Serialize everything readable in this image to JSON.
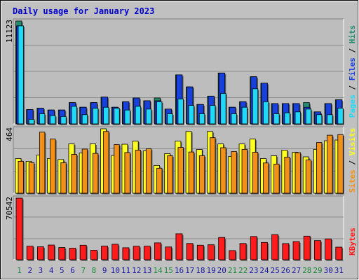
{
  "title": "Daily usage for January 2023",
  "colors": {
    "hits": "#228B72",
    "files": "#1840DD",
    "pages": "#22D8F8",
    "visits": "#FFFF22",
    "sites": "#F39018",
    "kbytes": "#FF1C1C",
    "weekday_label": "#1a1aa0",
    "weekend_label": "#1a8a3a",
    "title_color": "#0000CC"
  },
  "chart_data": [
    {
      "type": "bar",
      "panel": "hits-files-pages",
      "ymax_label": "11123",
      "ylim": [
        0,
        11123
      ],
      "ylabel_parts": [
        "Pages",
        "/",
        "Files",
        "/",
        "Hits"
      ],
      "categories": [
        "1",
        "2",
        "3",
        "4",
        "5",
        "6",
        "7",
        "8",
        "9",
        "10",
        "11",
        "12",
        "13",
        "14",
        "15",
        "16",
        "17",
        "18",
        "19",
        "20",
        "21",
        "22",
        "23",
        "24",
        "25",
        "26",
        "27",
        "28",
        "29",
        "30",
        "31"
      ],
      "weekend": [
        1,
        7,
        8,
        14,
        15,
        21,
        22,
        28,
        29
      ],
      "series": [
        {
          "name": "Hits",
          "values": [
            11123,
            1550,
            1700,
            1500,
            1500,
            2300,
            1800,
            2300,
            2900,
            1800,
            2400,
            2800,
            2500,
            2800,
            1600,
            5300,
            4000,
            2100,
            3000,
            5500,
            1800,
            2400,
            5100,
            4400,
            2200,
            2200,
            2200,
            2300,
            1300,
            2200,
            2600
          ]
        },
        {
          "name": "Files",
          "values": [
            10600,
            1550,
            1700,
            1500,
            1500,
            2300,
            1800,
            2300,
            2900,
            1800,
            2400,
            2800,
            2500,
            2500,
            1600,
            5300,
            4000,
            2100,
            3000,
            5500,
            1800,
            2400,
            5100,
            4400,
            2200,
            2200,
            2200,
            1800,
            1300,
            2200,
            2600
          ]
        },
        {
          "name": "Pages",
          "values": [
            10600,
            500,
            1100,
            900,
            800,
            1900,
            1000,
            1700,
            1800,
            1700,
            1500,
            1900,
            1600,
            2400,
            1100,
            2700,
            2000,
            1100,
            2000,
            3300,
            1100,
            1800,
            3800,
            2400,
            1100,
            1200,
            1300,
            1600,
            1000,
            1000,
            1700
          ]
        }
      ]
    },
    {
      "type": "bar",
      "panel": "visits-sites",
      "ymax_label": "464",
      "ylim": [
        0,
        464
      ],
      "ylabel_parts": [
        "Sites",
        "/",
        "Visits"
      ],
      "categories": [
        "1",
        "2",
        "3",
        "4",
        "5",
        "6",
        "7",
        "8",
        "9",
        "10",
        "11",
        "12",
        "13",
        "14",
        "15",
        "16",
        "17",
        "18",
        "19",
        "20",
        "21",
        "22",
        "23",
        "24",
        "25",
        "26",
        "27",
        "28",
        "29",
        "30",
        "31"
      ],
      "series": [
        {
          "name": "Visits",
          "values": [
            250,
            230,
            275,
            250,
            243,
            355,
            290,
            356,
            464,
            272,
            353,
            375,
            305,
            200,
            285,
            375,
            445,
            315,
            445,
            355,
            265,
            355,
            390,
            250,
            270,
            310,
            295,
            262,
            316,
            378,
            383
          ]
        },
        {
          "name": "Sites",
          "values": [
            230,
            220,
            440,
            390,
            220,
            280,
            318,
            287,
            445,
            350,
            293,
            310,
            320,
            180,
            270,
            330,
            297,
            270,
            400,
            328,
            300,
            316,
            295,
            218,
            210,
            260,
            292,
            240,
            365,
            418,
            422
          ]
        }
      ]
    },
    {
      "type": "bar",
      "panel": "kbytes",
      "ymax_label": "70542",
      "ylim": [
        0,
        70542
      ],
      "ylabel_parts": [
        "KBytes"
      ],
      "categories": [
        "1",
        "2",
        "3",
        "4",
        "5",
        "6",
        "7",
        "8",
        "9",
        "10",
        "11",
        "12",
        "13",
        "14",
        "15",
        "16",
        "17",
        "18",
        "19",
        "20",
        "21",
        "22",
        "23",
        "24",
        "25",
        "26",
        "27",
        "28",
        "29",
        "30",
        "31"
      ],
      "series": [
        {
          "name": "KBytes",
          "values": [
            70542,
            15500,
            14800,
            16800,
            14000,
            13200,
            16600,
            10900,
            15600,
            17700,
            13700,
            15400,
            15500,
            19300,
            14600,
            29700,
            18600,
            16600,
            17100,
            25500,
            10500,
            18600,
            26600,
            19800,
            28800,
            18500,
            20800,
            27000,
            21900,
            23800,
            14400
          ]
        }
      ]
    }
  ]
}
